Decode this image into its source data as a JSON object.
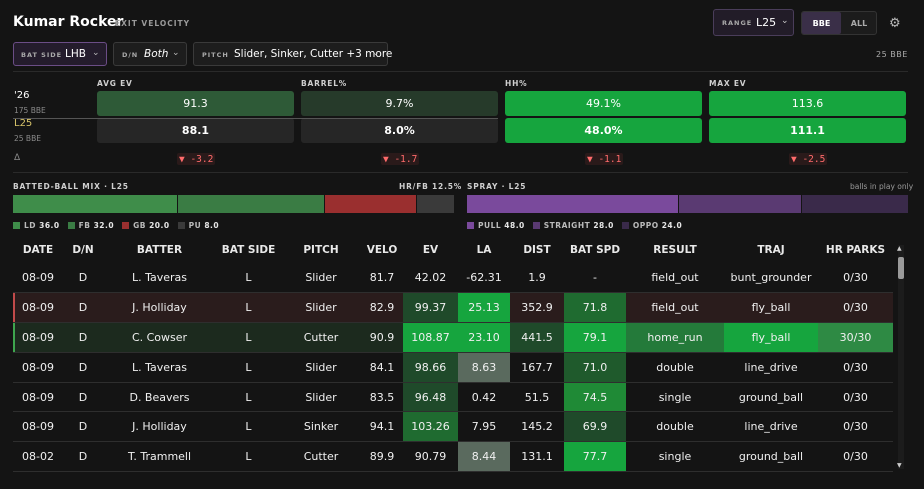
{
  "header": {
    "title": "Kumar Rocker",
    "subtitle": "EXIT VELOCITY"
  },
  "range": {
    "label": "RANGE",
    "value": "L25"
  },
  "mode_toggle": {
    "options": [
      "BBE",
      "ALL"
    ],
    "selected": "BBE"
  },
  "filters": [
    {
      "label": "BAT SIDE",
      "value": "LHB",
      "active": true
    },
    {
      "label": "D/N",
      "value": "Both",
      "active": false
    },
    {
      "label": "PITCH",
      "value": "Slider, Sinker, Cutter +3 more",
      "active": false
    }
  ],
  "bbe_count": "25 BBE",
  "summary": {
    "row1": {
      "label": "'26",
      "sub": "175 BBE"
    },
    "row2": {
      "label": "L25",
      "sub": "25 BBE"
    },
    "delta_symbol": "Δ",
    "metrics": [
      {
        "name": "AVG EV",
        "season": "91.3",
        "recent": "88.1",
        "delta": "▼ -3.2",
        "season_color": "#2e5a37",
        "recent_color": "#262626"
      },
      {
        "name": "BARREL%",
        "season": "9.7%",
        "recent": "8.0%",
        "delta": "▼ -1.7",
        "season_color": "#263a2a",
        "recent_color": "#262626"
      },
      {
        "name": "HH%",
        "season": "49.1%",
        "recent": "48.0%",
        "delta": "▼ -1.1",
        "season_color": "#16a53e",
        "recent_color": "#16a53e"
      },
      {
        "name": "MAX EV",
        "season": "113.6",
        "recent": "111.1",
        "delta": "▼ -2.5",
        "season_color": "#16a53e",
        "recent_color": "#16a53e"
      }
    ]
  },
  "batted_ball_mix": {
    "title": "BATTED-BALL MIX · L25",
    "hrfb": "HR/FB 12.5%",
    "segments": [
      {
        "label": "LD",
        "value": 36.0,
        "display": "36.0",
        "color": "#3f8d4a"
      },
      {
        "label": "FB",
        "value": 32.0,
        "display": "32.0",
        "color": "#3a7c44"
      },
      {
        "label": "GB",
        "value": 20.0,
        "display": "20.0",
        "color": "#9a2f2f"
      },
      {
        "label": "PU",
        "value": 8.0,
        "display": "8.0",
        "color": "#3a3a3a"
      }
    ]
  },
  "spray": {
    "title": "SPRAY · L25",
    "note": "balls in play only",
    "segments": [
      {
        "label": "PULL",
        "value": 48.0,
        "display": "48.0",
        "color": "#7a4a9c"
      },
      {
        "label": "STRAIGHT",
        "value": 28.0,
        "display": "28.0",
        "color": "#5a3a72"
      },
      {
        "label": "OPPO",
        "value": 24.0,
        "display": "24.0",
        "color": "#3a2a4a"
      }
    ]
  },
  "table": {
    "columns": [
      "DATE",
      "D/N",
      "BATTER",
      "BAT SIDE",
      "PITCH",
      "VELO",
      "EV",
      "LA",
      "DIST",
      "BAT SPD",
      "RESULT",
      "TRAJ",
      "HR PARKS"
    ],
    "rows": [
      {
        "cells": [
          "08-09",
          "D",
          "L. Taveras",
          "L",
          "Slider",
          "81.7",
          "42.02",
          "-62.31",
          "1.9",
          "-",
          "field_out",
          "bunt_grounder",
          "0/30"
        ],
        "highlight": "",
        "colors": {}
      },
      {
        "cells": [
          "08-09",
          "D",
          "J. Holliday",
          "L",
          "Slider",
          "82.9",
          "99.37",
          "25.13",
          "352.9",
          "71.8",
          "field_out",
          "fly_ball",
          "0/30"
        ],
        "highlight": "red",
        "colors": {
          "6": "#1f4a2a",
          "7": "#16a53e",
          "9": "#1f6b30"
        }
      },
      {
        "cells": [
          "08-09",
          "D",
          "C. Cowser",
          "L",
          "Cutter",
          "90.9",
          "108.87",
          "23.10",
          "441.5",
          "79.1",
          "home_run",
          "fly_ball",
          "30/30"
        ],
        "highlight": "green",
        "colors": {
          "6": "#16a53e",
          "7": "#16a53e",
          "8": "#1f4a2a",
          "9": "#16a53e",
          "10": "#247a3a",
          "11": "#16a53e",
          "12": "#2e8a44"
        }
      },
      {
        "cells": [
          "08-09",
          "D",
          "L. Taveras",
          "L",
          "Slider",
          "84.1",
          "98.66",
          "8.63",
          "167.7",
          "71.0",
          "double",
          "line_drive",
          "0/30"
        ],
        "highlight": "",
        "colors": {
          "6": "#1f4a2a",
          "7": "#5a6a5e",
          "9": "#1f5a2c"
        }
      },
      {
        "cells": [
          "08-09",
          "D",
          "D. Beavers",
          "L",
          "Slider",
          "83.5",
          "96.48",
          "0.42",
          "51.5",
          "74.5",
          "single",
          "ground_ball",
          "0/30"
        ],
        "highlight": "",
        "colors": {
          "6": "#1f4a2a",
          "9": "#1f8a36"
        }
      },
      {
        "cells": [
          "08-09",
          "D",
          "J. Holliday",
          "L",
          "Sinker",
          "94.1",
          "103.26",
          "7.95",
          "145.2",
          "69.9",
          "double",
          "line_drive",
          "0/30"
        ],
        "highlight": "",
        "colors": {
          "6": "#1f6b30",
          "9": "#1f4a2a"
        }
      },
      {
        "cells": [
          "08-02",
          "D",
          "T. Trammell",
          "L",
          "Cutter",
          "89.9",
          "90.79",
          "8.44",
          "131.1",
          "77.7",
          "single",
          "ground_ball",
          "0/30"
        ],
        "highlight": "",
        "colors": {
          "7": "#5a6a5e",
          "9": "#16a53e"
        }
      }
    ]
  }
}
